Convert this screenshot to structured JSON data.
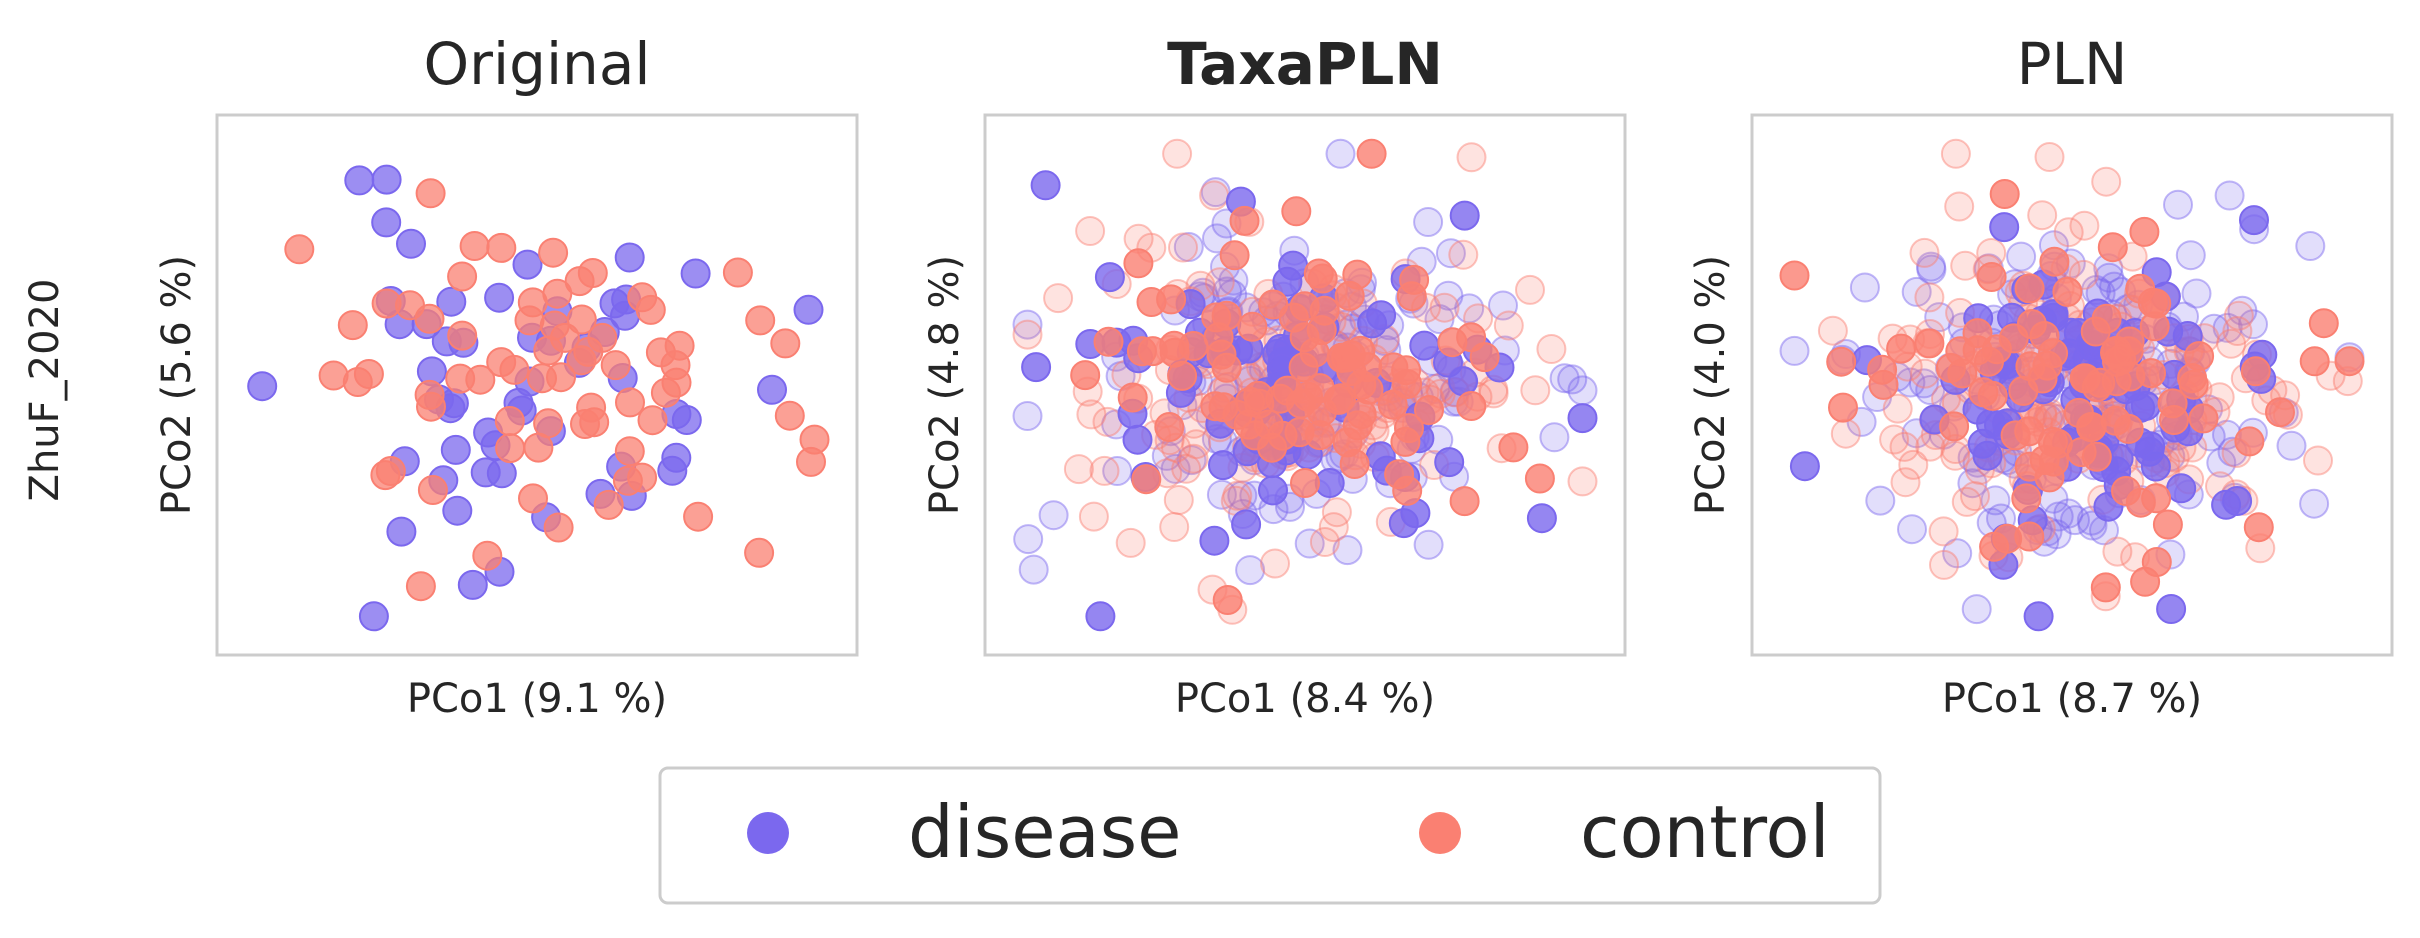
{
  "figure": {
    "row_label": "ZhuF_2020",
    "colors": {
      "disease": "#7b68ee",
      "control": "#fa8072"
    },
    "legend": [
      {
        "label": "disease",
        "color": "#7b68ee"
      },
      {
        "label": "control",
        "color": "#fa8072"
      }
    ]
  },
  "chart_data": [
    {
      "type": "scatter",
      "title": "Original",
      "title_bold": false,
      "xlabel": "PCo1 (9.1 %)",
      "ylabel": "PCo2 (5.6 %)",
      "grid": false,
      "legend_position": "bottom-center",
      "xlim": [
        -4,
        4
      ],
      "ylim": [
        -4,
        4
      ],
      "series": [
        {
          "name": "disease",
          "color": "#7b68ee",
          "opacity": 0.75,
          "n": 55,
          "seed": 11,
          "spread": [
            1.55,
            1.45
          ]
        },
        {
          "name": "control",
          "color": "#fa8072",
          "opacity": 0.75,
          "n": 70,
          "seed": 23,
          "spread": [
            1.7,
            1.5
          ]
        }
      ]
    },
    {
      "type": "scatter",
      "title": "TaxaPLN",
      "title_bold": true,
      "xlabel": "PCo1 (8.4 %)",
      "ylabel": "PCo2 (4.8 %)",
      "grid": false,
      "legend_position": "bottom-center",
      "xlim": [
        -4,
        4
      ],
      "ylim": [
        -4,
        4
      ],
      "series": [
        {
          "name": "disease",
          "color": "#7b68ee",
          "opacity": 0.22,
          "n": 150,
          "seed": 31,
          "spread": [
            1.4,
            1.25
          ]
        },
        {
          "name": "control",
          "color": "#fa8072",
          "opacity": 0.22,
          "n": 150,
          "seed": 37,
          "spread": [
            1.45,
            1.3
          ]
        },
        {
          "name": "disease",
          "color": "#7b68ee",
          "opacity": 0.8,
          "n": 80,
          "seed": 41,
          "spread": [
            1.35,
            1.15
          ]
        },
        {
          "name": "control",
          "color": "#fa8072",
          "opacity": 0.8,
          "n": 90,
          "seed": 43,
          "spread": [
            1.4,
            1.2
          ]
        }
      ]
    },
    {
      "type": "scatter",
      "title": "PLN",
      "title_bold": false,
      "xlabel": "PCo1 (8.7 %)",
      "ylabel": "PCo2 (4.0 %)",
      "grid": false,
      "legend_position": "bottom-center",
      "xlim": [
        -4,
        4
      ],
      "ylim": [
        -4,
        4
      ],
      "series": [
        {
          "name": "disease",
          "color": "#7b68ee",
          "opacity": 0.22,
          "n": 160,
          "seed": 53,
          "spread": [
            1.4,
            1.25
          ]
        },
        {
          "name": "control",
          "color": "#fa8072",
          "opacity": 0.22,
          "n": 160,
          "seed": 59,
          "spread": [
            1.45,
            1.3
          ]
        },
        {
          "name": "disease",
          "color": "#7b68ee",
          "opacity": 0.8,
          "n": 90,
          "seed": 61,
          "spread": [
            1.35,
            1.15
          ]
        },
        {
          "name": "control",
          "color": "#fa8072",
          "opacity": 0.8,
          "n": 90,
          "seed": 67,
          "spread": [
            1.4,
            1.2
          ]
        }
      ]
    }
  ]
}
